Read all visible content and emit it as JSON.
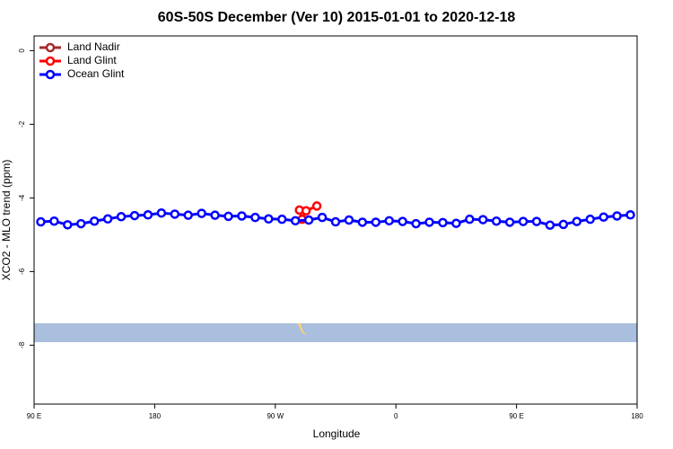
{
  "chart_data": {
    "type": "line",
    "title": "60S-50S December (Ver 10)   2015-01-01 to 2020-12-18",
    "x_label": "Longitude",
    "y_label": "XCO2 - MLO trend (ppm)",
    "xlim": [
      90,
      540
    ],
    "ylim": [
      -9.6,
      0.4
    ],
    "xticks": [
      {
        "value": 90,
        "label": "90 E"
      },
      {
        "value": 180,
        "label": "180"
      },
      {
        "value": 270,
        "label": "90 W"
      },
      {
        "value": 360,
        "label": "0"
      },
      {
        "value": 450,
        "label": "90 E"
      },
      {
        "value": 540,
        "label": "180"
      }
    ],
    "yticks": [
      0,
      -2,
      -4,
      -6,
      -8
    ],
    "legend": "top-left",
    "series": [
      {
        "name": "Land Nadir",
        "color": "#a52a2a",
        "x": [],
        "values": []
      },
      {
        "name": "Land Glint",
        "color": "#ff0000",
        "x": [
          288,
          290,
          293,
          301
        ],
        "values": [
          -4.33,
          -4.58,
          -4.35,
          -4.22
        ]
      },
      {
        "name": "Ocean Glint",
        "color": "#0000ff",
        "x": [
          95,
          105,
          115,
          125,
          135,
          145,
          155,
          165,
          175,
          185,
          195,
          205,
          215,
          225,
          235,
          245,
          255,
          265,
          275,
          285,
          295,
          305,
          315,
          325,
          335,
          345,
          355,
          365,
          375,
          385,
          395,
          405,
          415,
          425,
          435,
          445,
          455,
          465,
          475,
          485,
          495,
          505,
          515,
          525,
          535
        ],
        "values": [
          -4.65,
          -4.63,
          -4.73,
          -4.7,
          -4.63,
          -4.57,
          -4.51,
          -4.48,
          -4.46,
          -4.41,
          -4.44,
          -4.47,
          -4.42,
          -4.47,
          -4.5,
          -4.49,
          -4.53,
          -4.57,
          -4.58,
          -4.62,
          -4.6,
          -4.53,
          -4.65,
          -4.6,
          -4.66,
          -4.66,
          -4.62,
          -4.64,
          -4.7,
          -4.66,
          -4.67,
          -4.69,
          -4.58,
          -4.59,
          -4.63,
          -4.66,
          -4.64,
          -4.64,
          -4.74,
          -4.72,
          -4.64,
          -4.58,
          -4.52,
          -4.49,
          -4.46
        ]
      }
    ]
  }
}
